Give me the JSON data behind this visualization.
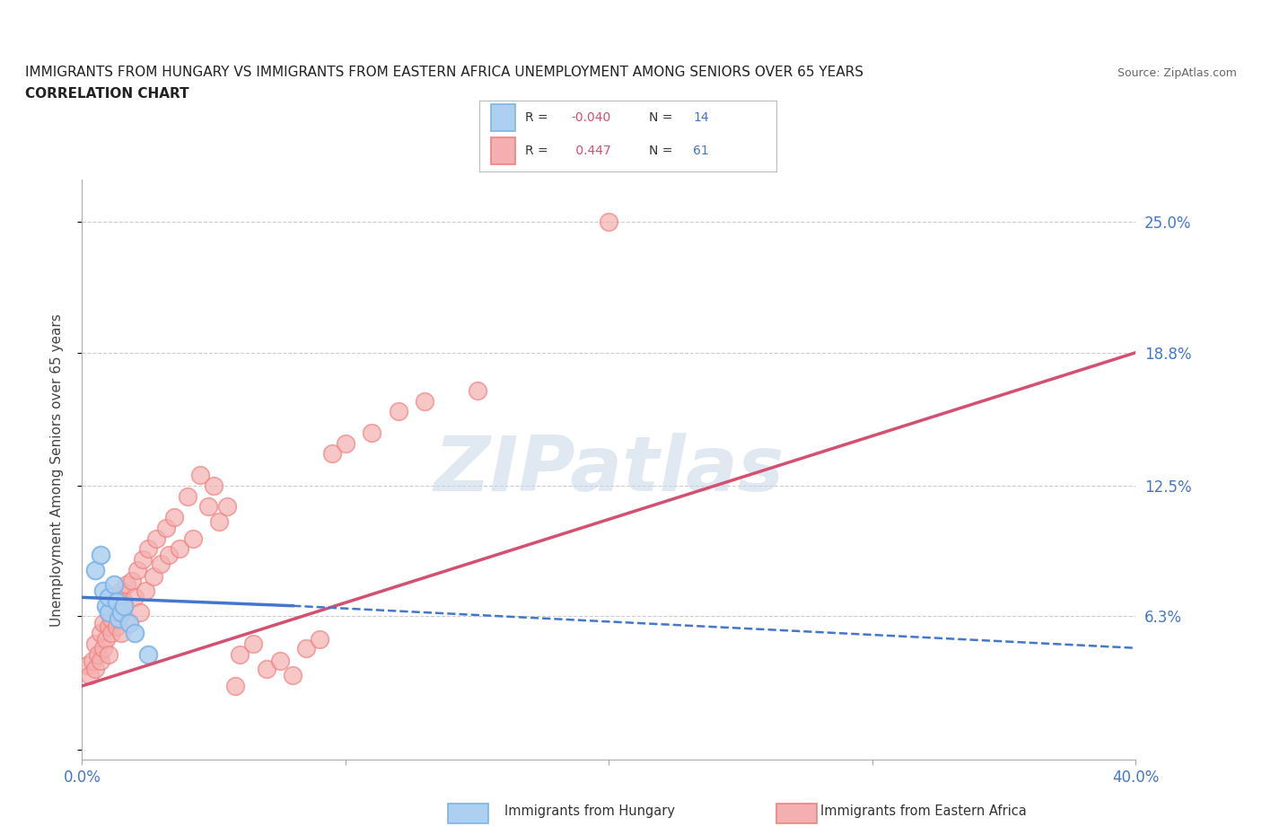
{
  "title_line1": "IMMIGRANTS FROM HUNGARY VS IMMIGRANTS FROM EASTERN AFRICA UNEMPLOYMENT AMONG SENIORS OVER 65 YEARS",
  "title_line2": "CORRELATION CHART",
  "source": "Source: ZipAtlas.com",
  "ylabel": "Unemployment Among Seniors over 65 years",
  "xlim": [
    0.0,
    0.4
  ],
  "ylim": [
    -0.005,
    0.27
  ],
  "y_tick_vals": [
    0.0,
    0.063,
    0.125,
    0.188,
    0.25
  ],
  "y_tick_labels_right": [
    "",
    "6.3%",
    "12.5%",
    "18.8%",
    "25.0%"
  ],
  "hungary_color": "#7EB3E8",
  "hungary_color_fill": "#AED0F0",
  "eastern_africa_color": "#F08080",
  "eastern_africa_color_fill": "#F4B0B0",
  "trend_hungary_color": "#4477CC",
  "trend_eastern_africa_color": "#D45070",
  "watermark_text": "ZIPatlas",
  "background_color": "#ffffff",
  "grid_color": "#cccccc",
  "hungary_x": [
    0.005,
    0.007,
    0.008,
    0.009,
    0.01,
    0.01,
    0.012,
    0.013,
    0.014,
    0.015,
    0.016,
    0.018,
    0.02,
    0.025
  ],
  "hungary_y": [
    0.085,
    0.092,
    0.075,
    0.068,
    0.065,
    0.072,
    0.078,
    0.07,
    0.062,
    0.065,
    0.068,
    0.06,
    0.055,
    0.045
  ],
  "eastern_africa_x": [
    0.002,
    0.003,
    0.004,
    0.005,
    0.005,
    0.006,
    0.007,
    0.007,
    0.008,
    0.008,
    0.009,
    0.01,
    0.01,
    0.01,
    0.011,
    0.011,
    0.012,
    0.013,
    0.013,
    0.014,
    0.015,
    0.015,
    0.016,
    0.017,
    0.018,
    0.019,
    0.02,
    0.021,
    0.022,
    0.023,
    0.024,
    0.025,
    0.027,
    0.028,
    0.03,
    0.032,
    0.033,
    0.035,
    0.037,
    0.04,
    0.042,
    0.045,
    0.048,
    0.05,
    0.052,
    0.055,
    0.058,
    0.06,
    0.065,
    0.07,
    0.075,
    0.08,
    0.085,
    0.09,
    0.095,
    0.1,
    0.11,
    0.12,
    0.13,
    0.15,
    0.2
  ],
  "eastern_africa_y": [
    0.04,
    0.035,
    0.042,
    0.038,
    0.05,
    0.045,
    0.055,
    0.042,
    0.06,
    0.048,
    0.052,
    0.058,
    0.065,
    0.045,
    0.055,
    0.062,
    0.068,
    0.072,
    0.058,
    0.065,
    0.075,
    0.055,
    0.07,
    0.078,
    0.06,
    0.08,
    0.072,
    0.085,
    0.065,
    0.09,
    0.075,
    0.095,
    0.082,
    0.1,
    0.088,
    0.105,
    0.092,
    0.11,
    0.095,
    0.12,
    0.1,
    0.13,
    0.115,
    0.125,
    0.108,
    0.115,
    0.03,
    0.045,
    0.05,
    0.038,
    0.042,
    0.035,
    0.048,
    0.052,
    0.14,
    0.145,
    0.15,
    0.16,
    0.165,
    0.17,
    0.25
  ],
  "trend_ea_x0": 0.0,
  "trend_ea_y0": 0.03,
  "trend_ea_x1": 0.4,
  "trend_ea_y1": 0.188,
  "trend_hu_x0": 0.0,
  "trend_hu_y0": 0.072,
  "trend_hu_x1": 0.08,
  "trend_hu_y1": 0.068,
  "trend_hu_dash_x0": 0.0,
  "trend_hu_dash_y0": 0.072,
  "trend_hu_dash_x1": 0.4,
  "trend_hu_dash_y1": 0.048
}
